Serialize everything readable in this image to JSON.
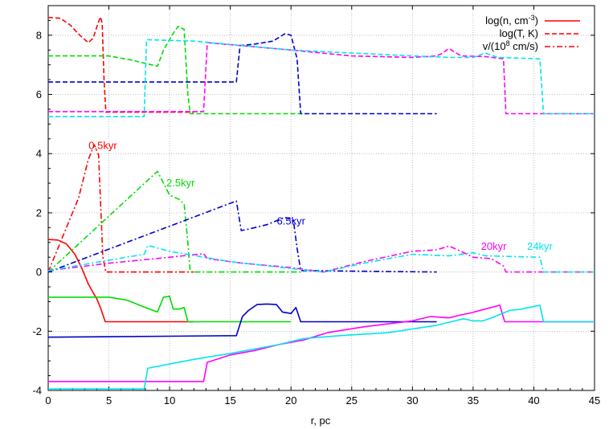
{
  "chart_data": {
    "type": "line",
    "xlabel": "r, pc",
    "ylabel": "",
    "xlim": [
      0,
      45
    ],
    "ylim": [
      -4,
      9
    ],
    "xticks": [
      "0",
      "5",
      "10",
      "15",
      "20",
      "25",
      "30",
      "35",
      "40",
      "45"
    ],
    "yticks": [
      "-4",
      "-2",
      "0",
      "2",
      "4",
      "6",
      "8"
    ],
    "grid": true,
    "legend_position": "top-right",
    "legend": [
      {
        "base": "log(n, cm",
        "sup": "-3",
        "tail": ")",
        "style": "solid"
      },
      {
        "base": "log(T, K)",
        "sup": "",
        "tail": "",
        "style": "dashed"
      },
      {
        "base": "v/(10",
        "sup": "8",
        "tail": " cm/s)",
        "style": "dashdot"
      }
    ],
    "annotations": [
      {
        "text": "0.5kyr",
        "x": 4.5,
        "y": 4.15,
        "color": "#ff0000"
      },
      {
        "text": "2.5kyr",
        "x": 10.9,
        "y": 2.9,
        "color": "#00dd00"
      },
      {
        "text": "6.5kyr",
        "x": 20.0,
        "y": 1.6,
        "color": "#0000cc"
      },
      {
        "text": "20kyr",
        "x": 36.7,
        "y": 0.75,
        "color": "#ff00ff"
      },
      {
        "text": "24kyr",
        "x": 40.5,
        "y": 0.75,
        "color": "#00e5ee"
      }
    ],
    "series": [
      {
        "color": "#ff0000",
        "style": "solid",
        "points": [
          [
            0,
            1.1
          ],
          [
            0.8,
            1.08
          ],
          [
            1.5,
            0.95
          ],
          [
            2.2,
            0.6
          ],
          [
            2.8,
            0.1
          ],
          [
            3.3,
            -0.4
          ],
          [
            3.7,
            -0.7
          ],
          [
            4.0,
            -0.9
          ],
          [
            4.3,
            -1.2
          ],
          [
            4.7,
            -1.68
          ],
          [
            12,
            -1.68
          ]
        ]
      },
      {
        "color": "#ff0000",
        "style": "dashed",
        "points": [
          [
            0,
            8.6
          ],
          [
            1.0,
            8.57
          ],
          [
            1.8,
            8.35
          ],
          [
            2.6,
            8.0
          ],
          [
            3.3,
            7.75
          ],
          [
            3.7,
            7.9
          ],
          [
            4.1,
            8.4
          ],
          [
            4.3,
            8.62
          ],
          [
            4.45,
            8.4
          ],
          [
            4.6,
            6.5
          ],
          [
            4.75,
            5.4
          ],
          [
            12,
            5.4
          ]
        ]
      },
      {
        "color": "#ff0000",
        "style": "dashdot",
        "points": [
          [
            0,
            0
          ],
          [
            2.5,
            2.5
          ],
          [
            3.3,
            3.8
          ],
          [
            3.8,
            4.3
          ],
          [
            4.15,
            3.95
          ],
          [
            4.5,
            0.5
          ],
          [
            4.75,
            0
          ],
          [
            12,
            0
          ]
        ]
      },
      {
        "color": "#00dd00",
        "style": "solid",
        "points": [
          [
            0,
            -0.85
          ],
          [
            3,
            -0.85
          ],
          [
            5,
            -0.85
          ],
          [
            6.5,
            -0.95
          ],
          [
            8,
            -1.2
          ],
          [
            9,
            -1.35
          ],
          [
            9.5,
            -0.85
          ],
          [
            10,
            -0.82
          ],
          [
            10.3,
            -1.25
          ],
          [
            10.8,
            -1.25
          ],
          [
            11.2,
            -1.2
          ],
          [
            11.5,
            -1.68
          ],
          [
            20,
            -1.68
          ]
        ]
      },
      {
        "color": "#00dd00",
        "style": "dashed",
        "points": [
          [
            0,
            7.3
          ],
          [
            3,
            7.3
          ],
          [
            5,
            7.3
          ],
          [
            7,
            7.15
          ],
          [
            9,
            6.95
          ],
          [
            9.5,
            7.5
          ],
          [
            10.2,
            8.0
          ],
          [
            10.7,
            8.3
          ],
          [
            11.2,
            8.2
          ],
          [
            11.5,
            6.0
          ],
          [
            11.7,
            5.35
          ],
          [
            21,
            5.35
          ]
        ]
      },
      {
        "color": "#00dd00",
        "style": "dashdot",
        "points": [
          [
            0,
            0
          ],
          [
            9,
            3.4
          ],
          [
            9.5,
            3.0
          ],
          [
            10,
            2.6
          ],
          [
            10.8,
            2.45
          ],
          [
            11.2,
            2.3
          ],
          [
            11.5,
            1.0
          ],
          [
            11.7,
            0
          ],
          [
            21,
            0
          ]
        ]
      },
      {
        "color": "#0000cc",
        "style": "solid",
        "points": [
          [
            0,
            -2.2
          ],
          [
            15.5,
            -2.15
          ],
          [
            16.0,
            -1.5
          ],
          [
            16.5,
            -1.3
          ],
          [
            17.2,
            -1.1
          ],
          [
            18.0,
            -1.08
          ],
          [
            18.8,
            -1.1
          ],
          [
            19.3,
            -1.35
          ],
          [
            20.0,
            -1.4
          ],
          [
            20.4,
            -1.2
          ],
          [
            20.8,
            -1.68
          ],
          [
            32,
            -1.68
          ]
        ]
      },
      {
        "color": "#0000cc",
        "style": "dashed",
        "points": [
          [
            0,
            6.42
          ],
          [
            15.5,
            6.42
          ],
          [
            15.8,
            7.65
          ],
          [
            17,
            7.7
          ],
          [
            18.5,
            7.8
          ],
          [
            19.5,
            8.05
          ],
          [
            20.0,
            8.0
          ],
          [
            20.5,
            7.2
          ],
          [
            20.8,
            5.35
          ],
          [
            32,
            5.35
          ]
        ]
      },
      {
        "color": "#0000cc",
        "style": "dashdot",
        "points": [
          [
            0,
            0
          ],
          [
            15.5,
            2.4
          ],
          [
            15.9,
            1.4
          ],
          [
            16.5,
            1.45
          ],
          [
            18,
            1.6
          ],
          [
            19.5,
            1.85
          ],
          [
            20.2,
            1.75
          ],
          [
            20.5,
            0.8
          ],
          [
            20.8,
            0.05
          ],
          [
            32,
            0
          ]
        ]
      },
      {
        "color": "#ff00ff",
        "style": "solid",
        "points": [
          [
            0,
            -3.7
          ],
          [
            12.8,
            -3.7
          ],
          [
            13.1,
            -3.05
          ],
          [
            15,
            -2.8
          ],
          [
            17,
            -2.65
          ],
          [
            19,
            -2.45
          ],
          [
            21,
            -2.3
          ],
          [
            23,
            -2.05
          ],
          [
            26,
            -1.85
          ],
          [
            28,
            -1.75
          ],
          [
            30,
            -1.65
          ],
          [
            31.5,
            -1.5
          ],
          [
            33,
            -1.55
          ],
          [
            34,
            -1.45
          ],
          [
            34.8,
            -1.38
          ],
          [
            36,
            -1.25
          ],
          [
            37.2,
            -1.12
          ],
          [
            37.6,
            -1.68
          ],
          [
            45,
            -1.68
          ]
        ]
      },
      {
        "color": "#ff00ff",
        "style": "dashed",
        "points": [
          [
            0,
            5.42
          ],
          [
            12.8,
            5.42
          ],
          [
            13.1,
            7.75
          ],
          [
            20,
            7.5
          ],
          [
            25,
            7.3
          ],
          [
            30,
            7.25
          ],
          [
            32,
            7.3
          ],
          [
            32.5,
            7.4
          ],
          [
            33,
            7.55
          ],
          [
            34,
            7.3
          ],
          [
            36,
            7.28
          ],
          [
            37.5,
            7.2
          ],
          [
            37.7,
            5.35
          ],
          [
            45,
            5.35
          ]
        ]
      },
      {
        "color": "#ff00ff",
        "style": "dashdot",
        "points": [
          [
            0,
            0.05
          ],
          [
            5,
            0.3
          ],
          [
            10,
            0.5
          ],
          [
            12.8,
            0.62
          ],
          [
            13.1,
            0.45
          ],
          [
            16,
            0.3
          ],
          [
            20,
            0.15
          ],
          [
            22.7,
            0
          ],
          [
            26,
            0.35
          ],
          [
            30,
            0.7
          ],
          [
            32,
            0.75
          ],
          [
            33,
            0.88
          ],
          [
            34,
            0.7
          ],
          [
            35,
            0.5
          ],
          [
            36.5,
            0.45
          ],
          [
            37.5,
            0.2
          ],
          [
            37.7,
            0
          ],
          [
            45,
            0
          ]
        ]
      },
      {
        "color": "#00e5ee",
        "style": "solid",
        "points": [
          [
            0,
            -3.95
          ],
          [
            7.9,
            -3.95
          ],
          [
            8.2,
            -3.25
          ],
          [
            12,
            -2.95
          ],
          [
            15,
            -2.75
          ],
          [
            17,
            -2.6
          ],
          [
            19,
            -2.45
          ],
          [
            21,
            -2.25
          ],
          [
            24,
            -2.15
          ],
          [
            28,
            -2.05
          ],
          [
            32,
            -1.8
          ],
          [
            33.5,
            -1.65
          ],
          [
            34.2,
            -1.58
          ],
          [
            35,
            -1.65
          ],
          [
            35.8,
            -1.65
          ],
          [
            36.5,
            -1.55
          ],
          [
            38,
            -1.3
          ],
          [
            39,
            -1.25
          ],
          [
            40.5,
            -1.12
          ],
          [
            40.8,
            -1.68
          ],
          [
            45,
            -1.68
          ]
        ]
      },
      {
        "color": "#00e5ee",
        "style": "dashed",
        "points": [
          [
            0,
            5.25
          ],
          [
            7.9,
            5.25
          ],
          [
            8.1,
            7.85
          ],
          [
            12,
            7.8
          ],
          [
            16,
            7.65
          ],
          [
            20,
            7.5
          ],
          [
            25,
            7.4
          ],
          [
            30,
            7.3
          ],
          [
            33,
            7.25
          ],
          [
            35,
            7.25
          ],
          [
            36,
            7.4
          ],
          [
            37,
            7.25
          ],
          [
            40.5,
            7.2
          ],
          [
            40.8,
            5.35
          ],
          [
            45,
            5.35
          ]
        ]
      },
      {
        "color": "#00e5ee",
        "style": "dashdot",
        "points": [
          [
            0,
            0.05
          ],
          [
            5,
            0.4
          ],
          [
            7.9,
            0.6
          ],
          [
            8.2,
            0.9
          ],
          [
            10,
            0.7
          ],
          [
            15,
            0.35
          ],
          [
            20,
            0.12
          ],
          [
            22.7,
            0
          ],
          [
            26,
            0.3
          ],
          [
            30,
            0.6
          ],
          [
            33,
            0.55
          ],
          [
            35,
            0.65
          ],
          [
            36,
            0.55
          ],
          [
            40.5,
            0.5
          ],
          [
            40.8,
            0
          ],
          [
            45,
            0
          ]
        ]
      }
    ]
  }
}
